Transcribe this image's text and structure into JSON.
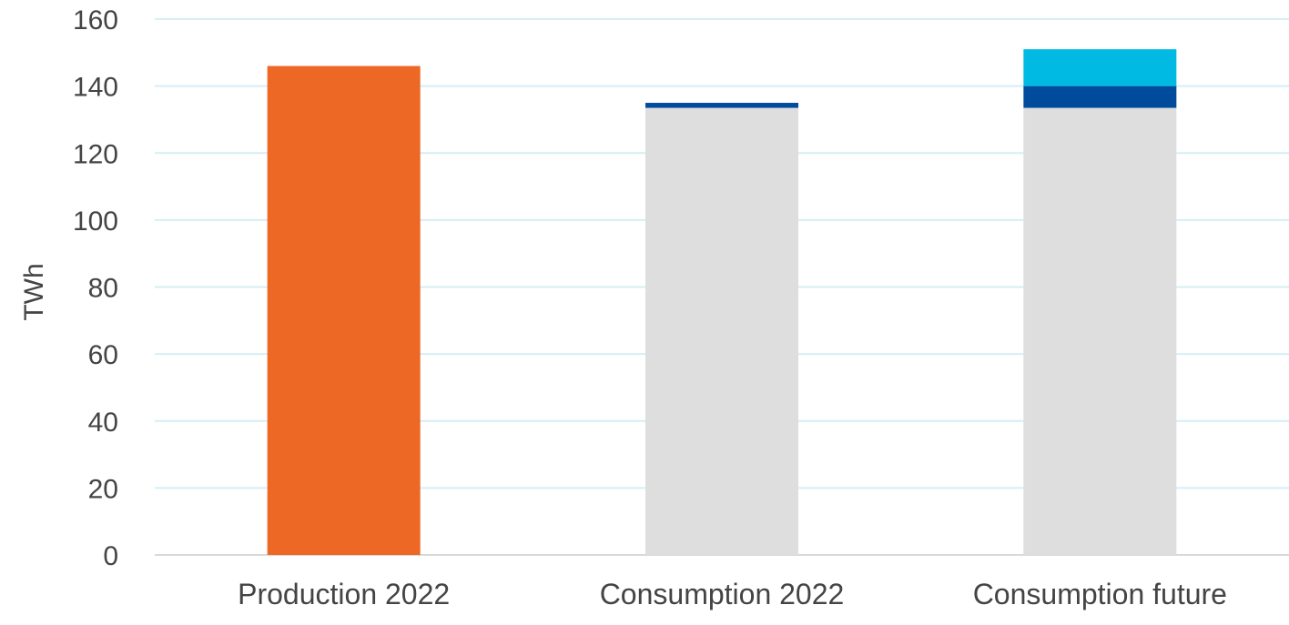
{
  "chart_data": {
    "type": "bar",
    "stacked": true,
    "title": "",
    "xlabel": "",
    "ylabel": "TWh",
    "ylim": [
      0,
      160
    ],
    "yticks": [
      "0",
      "20",
      "40",
      "60",
      "80",
      "100",
      "120",
      "140",
      "160"
    ],
    "categories": [
      "Production 2022",
      "Consumption 2022",
      "Consumption future"
    ],
    "grid": true,
    "legend": "none",
    "series": [
      {
        "color": "#ED6825",
        "values": [
          146,
          0,
          0
        ]
      },
      {
        "color": "#DEDEDE",
        "values": [
          0,
          133.5,
          133.5
        ]
      },
      {
        "color": "#004B9B",
        "values": [
          0,
          1.5,
          6.5
        ]
      },
      {
        "color": "#00BAE3",
        "values": [
          0,
          0,
          11
        ]
      }
    ],
    "colors": {
      "grid": "#D6EEF6",
      "axis": "#D9D9D9",
      "text": "#444444"
    }
  }
}
